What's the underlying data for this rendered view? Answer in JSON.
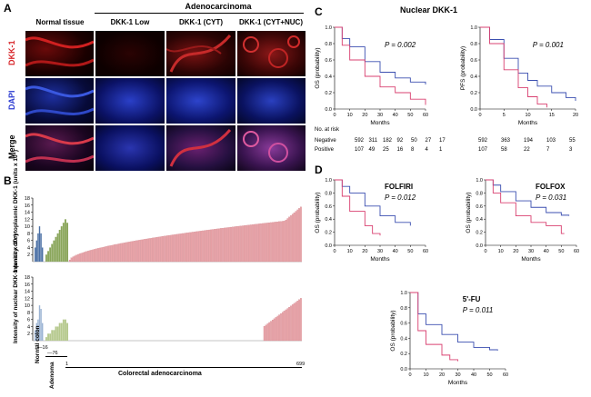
{
  "panels": {
    "a": {
      "letter": "A",
      "group_header": "Adenocarcinoma",
      "columns": [
        "Normal tissue",
        "DKK-1  Low",
        "DKK-1 (CYT)",
        "DKK-1 (CYT+NUC)"
      ],
      "rows": [
        {
          "label": "DKK-1",
          "color": "#d8262a"
        },
        {
          "label": "DAPI",
          "color": "#2b3bd1"
        },
        {
          "label": "Merge",
          "color": "#000000"
        }
      ]
    },
    "b": {
      "letter": "B",
      "ylabel_top": "Intensity of cytoplasmic DKK-1 (units x 10⁴)",
      "ylabel_bottom": "Intensity of nuclear DKK-1 (units x 10⁴)",
      "x_ticks": [
        "1—16",
        "—76",
        "1",
        "699"
      ],
      "x_groups": [
        "Normal colon",
        "Adenoma",
        "Colorectal adenocarcinoma"
      ]
    },
    "c": {
      "letter": "C",
      "title": "Nuclear DKK-1",
      "at_risk_title": "No. at risk",
      "row_labels": [
        "Negative",
        "Positive"
      ],
      "os_neg": [
        "592",
        "311",
        "182",
        "92",
        "50",
        "27",
        "17"
      ],
      "os_pos": [
        "107",
        "49",
        "25",
        "16",
        "8",
        "4",
        "1"
      ],
      "pfs_neg": [
        "592",
        "363",
        "194",
        "103",
        "55"
      ],
      "pfs_pos": [
        "107",
        "58",
        "22",
        "7",
        "3"
      ]
    },
    "d": {
      "letter": "D"
    }
  },
  "chart_data": [
    {
      "type": "bar",
      "title": "",
      "ylabel": "Intensity of cytoplasmic DKK-1 (units x 10⁴)",
      "ylim": [
        0,
        18
      ],
      "yticks": [
        2,
        4,
        6,
        8,
        10,
        12,
        14,
        16,
        18
      ],
      "series": [
        {
          "name": "Normal colon",
          "color": "#4a6fa5",
          "values": [
            4,
            6,
            8,
            10,
            8,
            4
          ]
        },
        {
          "name": "Adenoma",
          "color": "#8aa65b",
          "values": [
            2,
            3,
            4,
            5,
            6,
            7,
            8,
            9,
            10,
            11,
            12,
            11
          ]
        },
        {
          "name": "Colorectal adenocarcinoma",
          "color": "#e9a4a9",
          "range": [
            0.5,
            15.5
          ]
        }
      ]
    },
    {
      "type": "bar",
      "title": "",
      "ylabel": "Intensity of nuclear DKK-1 (units x 10⁴)",
      "ylim": [
        0,
        18
      ],
      "yticks": [
        2,
        4,
        6,
        8,
        10,
        12,
        14,
        16,
        18
      ],
      "series": [
        {
          "name": "Normal colon",
          "color": "#9bb3d3",
          "values": [
            3,
            5,
            6,
            10,
            9,
            5
          ]
        },
        {
          "name": "Adenoma",
          "color": "#b6c98e",
          "values": [
            1,
            2,
            2,
            3,
            3,
            4,
            4,
            5,
            5,
            6,
            6,
            5
          ]
        },
        {
          "name": "Colorectal adenocarcinoma",
          "color": "#e9a4a9",
          "range": [
            4,
            12
          ]
        }
      ]
    },
    {
      "type": "line",
      "ylabel": "OS (probability)",
      "xlabel": "Months",
      "pvalue": "P = 0.002",
      "xlim": [
        0,
        60
      ],
      "ylim": [
        0,
        1.0
      ],
      "xticks": [
        0,
        10,
        20,
        30,
        40,
        50,
        60
      ],
      "yticks": [
        0,
        0.2,
        0.4,
        0.6,
        0.8,
        1.0
      ],
      "series": [
        {
          "name": "Negative",
          "color": "#3b4fb0",
          "x": [
            0,
            5,
            10,
            20,
            30,
            40,
            50,
            60
          ],
          "y": [
            1.0,
            0.86,
            0.76,
            0.58,
            0.45,
            0.38,
            0.33,
            0.3
          ]
        },
        {
          "name": "Positive",
          "color": "#d94070",
          "x": [
            0,
            5,
            10,
            20,
            30,
            40,
            50,
            60
          ],
          "y": [
            1.0,
            0.78,
            0.6,
            0.4,
            0.27,
            0.2,
            0.12,
            0.05
          ]
        }
      ]
    },
    {
      "type": "line",
      "ylabel": "PFS (probability)",
      "xlabel": "Months",
      "pvalue": "P = 0.001",
      "xlim": [
        0,
        20
      ],
      "ylim": [
        0,
        1.0
      ],
      "xticks": [
        0,
        5,
        10,
        15,
        20
      ],
      "yticks": [
        0,
        0.2,
        0.4,
        0.6,
        0.8,
        1.0
      ],
      "series": [
        {
          "name": "Negative",
          "color": "#3b4fb0",
          "x": [
            0,
            2,
            5,
            8,
            10,
            12,
            15,
            18,
            20
          ],
          "y": [
            1.0,
            0.85,
            0.62,
            0.44,
            0.35,
            0.28,
            0.2,
            0.14,
            0.1
          ]
        },
        {
          "name": "Positive",
          "color": "#d94070",
          "x": [
            0,
            2,
            5,
            8,
            10,
            12,
            14
          ],
          "y": [
            1.0,
            0.8,
            0.48,
            0.26,
            0.15,
            0.06,
            0.02
          ]
        }
      ]
    },
    {
      "type": "line",
      "title": "FOLFIRI",
      "ylabel": "OS (probability)",
      "xlabel": "Months",
      "pvalue": "P = 0.012",
      "xlim": [
        0,
        60
      ],
      "ylim": [
        0,
        1.0
      ],
      "xticks": [
        0,
        10,
        20,
        30,
        40,
        50,
        60
      ],
      "yticks": [
        0,
        0.2,
        0.4,
        0.6,
        0.8,
        1.0
      ],
      "series": [
        {
          "name": "Negative",
          "color": "#3b4fb0",
          "x": [
            0,
            5,
            10,
            20,
            30,
            40,
            50
          ],
          "y": [
            1.0,
            0.9,
            0.8,
            0.6,
            0.45,
            0.35,
            0.3
          ]
        },
        {
          "name": "Positive",
          "color": "#d94070",
          "x": [
            0,
            5,
            10,
            20,
            25,
            30
          ],
          "y": [
            1.0,
            0.75,
            0.52,
            0.3,
            0.18,
            0.15
          ]
        }
      ]
    },
    {
      "type": "line",
      "title": "FOLFOX",
      "ylabel": "OS (probability)",
      "xlabel": "Months",
      "pvalue": "P = 0.031",
      "xlim": [
        0,
        60
      ],
      "ylim": [
        0,
        1.0
      ],
      "xticks": [
        0,
        10,
        20,
        30,
        40,
        50,
        60
      ],
      "yticks": [
        0,
        0.2,
        0.4,
        0.6,
        0.8,
        1.0
      ],
      "series": [
        {
          "name": "Negative",
          "color": "#3b4fb0",
          "x": [
            0,
            5,
            10,
            20,
            30,
            40,
            50,
            55
          ],
          "y": [
            1.0,
            0.92,
            0.82,
            0.68,
            0.58,
            0.5,
            0.46,
            0.45
          ]
        },
        {
          "name": "Positive",
          "color": "#d94070",
          "x": [
            0,
            5,
            10,
            20,
            30,
            40,
            50,
            52
          ],
          "y": [
            1.0,
            0.8,
            0.65,
            0.45,
            0.35,
            0.3,
            0.18,
            0.18
          ]
        }
      ]
    },
    {
      "type": "line",
      "title": "5'-FU",
      "ylabel": "OS (probability)",
      "xlabel": "Months",
      "pvalue": "P = 0.011",
      "xlim": [
        0,
        60
      ],
      "ylim": [
        0,
        1.0
      ],
      "xticks": [
        0,
        10,
        20,
        30,
        40,
        50,
        60
      ],
      "yticks": [
        0,
        0.2,
        0.4,
        0.6,
        0.8,
        1.0
      ],
      "series": [
        {
          "name": "Negative",
          "color": "#3b4fb0",
          "x": [
            0,
            5,
            10,
            20,
            30,
            40,
            50,
            55
          ],
          "y": [
            1.0,
            0.72,
            0.58,
            0.45,
            0.35,
            0.28,
            0.25,
            0.24
          ]
        },
        {
          "name": "Positive",
          "color": "#d94070",
          "x": [
            0,
            5,
            10,
            20,
            25,
            30
          ],
          "y": [
            1.0,
            0.5,
            0.32,
            0.18,
            0.12,
            0.1
          ]
        }
      ]
    }
  ]
}
